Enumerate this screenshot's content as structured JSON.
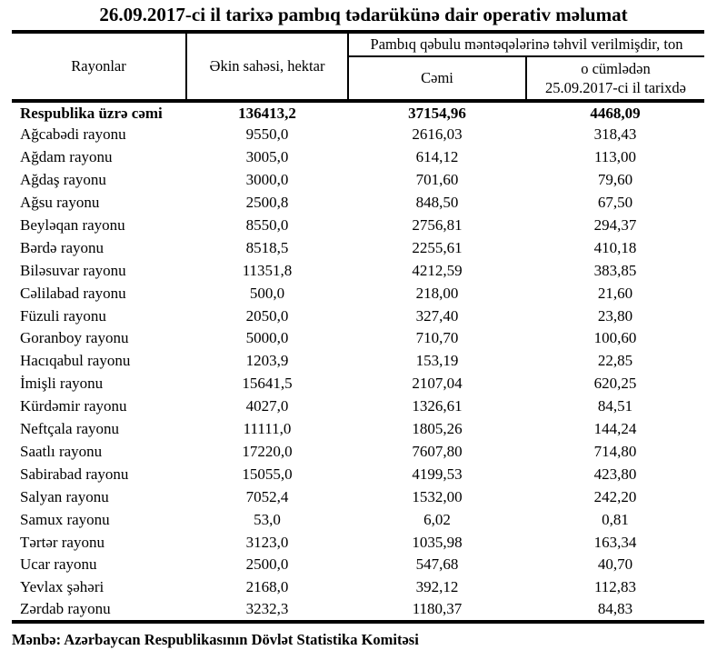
{
  "title": "26.09.2017-ci il tarixə pambıq tədarükünə dair operativ məlumat",
  "table": {
    "headers": {
      "col1": "Rayonlar",
      "col2": "Əkin sahəsi, hektar",
      "group": "Pambıq qəbulu məntəqələrinə təhvil verilmişdir, ton",
      "col3": "Cəmi",
      "col4_line1": "o cümlədən",
      "col4_line2": "25.09.2017-ci il tarixdə"
    },
    "total_row": {
      "label": "Respublika üzrə cəmi",
      "area": "136413,2",
      "total": "37154,96",
      "daily": "4468,09"
    },
    "rows": [
      {
        "label": "Ağcabədi rayonu",
        "area": "9550,0",
        "total": "2616,03",
        "daily": "318,43"
      },
      {
        "label": "Ağdam rayonu",
        "area": "3005,0",
        "total": "614,12",
        "daily": "113,00"
      },
      {
        "label": "Ağdaş rayonu",
        "area": "3000,0",
        "total": "701,60",
        "daily": "79,60"
      },
      {
        "label": "Ağsu rayonu",
        "area": "2500,8",
        "total": "848,50",
        "daily": "67,50"
      },
      {
        "label": "Beyləqan rayonu",
        "area": "8550,0",
        "total": "2756,81",
        "daily": "294,37"
      },
      {
        "label": "Bərdə rayonu",
        "area": "8518,5",
        "total": "2255,61",
        "daily": "410,18"
      },
      {
        "label": "Biləsuvar rayonu",
        "area": "11351,8",
        "total": "4212,59",
        "daily": "383,85"
      },
      {
        "label": "Cəlilabad rayonu",
        "area": "500,0",
        "total": "218,00",
        "daily": "21,60"
      },
      {
        "label": "Füzuli rayonu",
        "area": "2050,0",
        "total": "327,40",
        "daily": "23,80"
      },
      {
        "label": "Goranboy rayonu",
        "area": "5000,0",
        "total": "710,70",
        "daily": "100,60"
      },
      {
        "label": "Hacıqabul rayonu",
        "area": "1203,9",
        "total": "153,19",
        "daily": "22,85"
      },
      {
        "label": "İmişli rayonu",
        "area": "15641,5",
        "total": "2107,04",
        "daily": "620,25"
      },
      {
        "label": "Kürdəmir rayonu",
        "area": "4027,0",
        "total": "1326,61",
        "daily": "84,51"
      },
      {
        "label": "Neftçala rayonu",
        "area": "11111,0",
        "total": "1805,26",
        "daily": "144,24"
      },
      {
        "label": "Saatlı rayonu",
        "area": "17220,0",
        "total": "7607,80",
        "daily": "714,80"
      },
      {
        "label": "Sabirabad rayonu",
        "area": "15055,0",
        "total": "4199,53",
        "daily": "423,80"
      },
      {
        "label": "Salyan rayonu",
        "area": "7052,4",
        "total": "1532,00",
        "daily": "242,20"
      },
      {
        "label": "Samux rayonu",
        "area": "53,0",
        "total": "6,02",
        "daily": "0,81"
      },
      {
        "label": "Tərtər rayonu",
        "area": "3123,0",
        "total": "1035,98",
        "daily": "163,34"
      },
      {
        "label": "Ucar rayonu",
        "area": "2500,0",
        "total": "547,68",
        "daily": "40,70"
      },
      {
        "label": "Yevlax şəhəri",
        "area": "2168,0",
        "total": "392,12",
        "daily": "112,83"
      },
      {
        "label": "Zərdab rayonu",
        "area": "3232,3",
        "total": "1180,37",
        "daily": "84,83"
      }
    ]
  },
  "source": "Mənbə: Azərbaycan Respublikasının Dövlət Statistika Komitəsi",
  "colors": {
    "text": "#000000",
    "background": "#ffffff",
    "border": "#000000"
  }
}
